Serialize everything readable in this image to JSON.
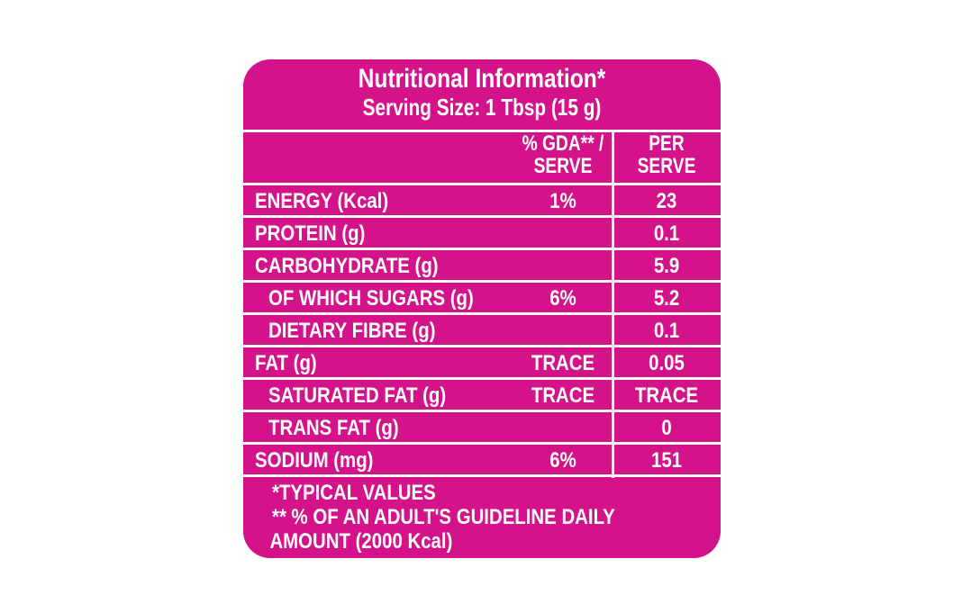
{
  "title": "Nutritional Information*",
  "serving_size": "Serving Size: 1 Tbsp (15 g)",
  "columns": {
    "gda_line1": "% GDA** /",
    "gda_line2": "SERVE",
    "per_line1": "PER",
    "per_line2": "SERVE"
  },
  "rows": [
    {
      "label": "ENERGY (Kcal)",
      "gda": "1%",
      "value": "23"
    },
    {
      "label": "PROTEIN (g)",
      "gda": "",
      "value": "0.1"
    },
    {
      "label": "CARBOHYDRATE (g)",
      "gda": "",
      "value": "5.9"
    },
    {
      "label": "OF WHICH SUGARS (g)",
      "gda": "6%",
      "value": "5.2"
    },
    {
      "label": "DIETARY FIBRE (g)",
      "gda": "",
      "value": "0.1"
    },
    {
      "label": "FAT (g)",
      "gda": "TRACE",
      "value": "0.05"
    },
    {
      "label": "SATURATED FAT (g)",
      "gda": "TRACE",
      "value": "TRACE"
    },
    {
      "label": "TRANS FAT (g)",
      "gda": "",
      "value": "0"
    },
    {
      "label": "SODIUM (mg)",
      "gda": "6%",
      "value": "151"
    }
  ],
  "footnotes": [
    "*TYPICAL VALUES",
    "** % OF AN ADULT'S GUIDELINE DAILY",
    "AMOUNT (2000 Kcal)"
  ],
  "colors": {
    "background": "#d4138a",
    "text": "#ffffff"
  }
}
